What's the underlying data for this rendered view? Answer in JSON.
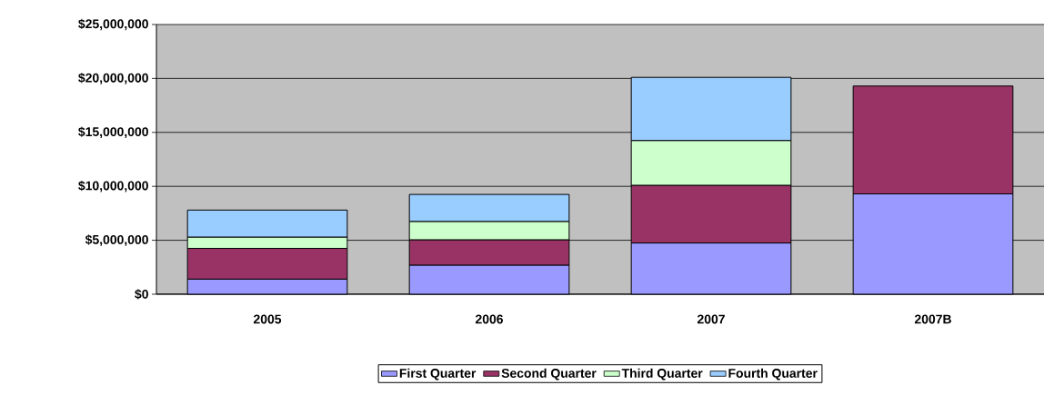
{
  "chart_data": {
    "type": "bar",
    "stacked": true,
    "categories": [
      "2005",
      "2006",
      "2007",
      "2007B"
    ],
    "series": [
      {
        "name": "First Quarter",
        "color": "#9999ff",
        "values": [
          1400000,
          2700000,
          4750000,
          9300000
        ]
      },
      {
        "name": "Second Quarter",
        "color": "#993366",
        "values": [
          2850000,
          2350000,
          5350000,
          10000000
        ]
      },
      {
        "name": "Third Quarter",
        "color": "#ccffcc",
        "values": [
          1050000,
          1700000,
          4150000,
          null
        ]
      },
      {
        "name": "Fourth Quarter",
        "color": "#99ccff",
        "values": [
          2500000,
          2500000,
          5850000,
          null
        ]
      }
    ],
    "ylim": [
      0,
      25000000
    ],
    "yticks": [
      {
        "value": 0,
        "label": "$0"
      },
      {
        "value": 5000000,
        "label": "$5,000,000"
      },
      {
        "value": 10000000,
        "label": "$10,000,000"
      },
      {
        "value": 15000000,
        "label": "$15,000,000"
      },
      {
        "value": 20000000,
        "label": "$20,000,000"
      },
      {
        "value": 25000000,
        "label": "$25,000,000"
      }
    ],
    "grid": "y",
    "legend": "bottom"
  }
}
